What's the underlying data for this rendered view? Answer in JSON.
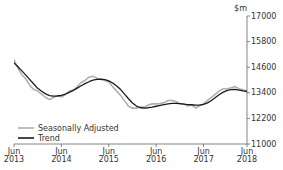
{
  "chart_data": {
    "type": "line",
    "ylabel": "$m",
    "categories": [
      "Jun\n2013",
      null,
      null,
      null,
      null,
      null,
      null,
      null,
      null,
      null,
      null,
      null,
      "Jun\n2014",
      null,
      null,
      null,
      null,
      null,
      null,
      null,
      null,
      null,
      null,
      null,
      "Jun\n2015",
      null,
      null,
      null,
      null,
      null,
      null,
      null,
      null,
      null,
      null,
      null,
      "Jun\n2016",
      null,
      null,
      null,
      null,
      null,
      null,
      null,
      null,
      null,
      null,
      null,
      "Jun\n2017",
      null,
      null,
      null,
      null,
      null,
      null,
      null,
      null,
      null,
      null,
      "Jun\n2018"
    ],
    "series": [
      {
        "name": "Seasonally Adjusted",
        "color": "#b0b0b0",
        "values": [
          14950,
          14550,
          14250,
          14050,
          13750,
          13550,
          13480,
          13340,
          13180,
          13080,
          13180,
          13280,
          13200,
          13320,
          13480,
          13530,
          13680,
          13880,
          13980,
          14130,
          14180,
          14080,
          14020,
          13980,
          13920,
          13680,
          13480,
          13280,
          13020,
          12770,
          12680,
          12680,
          12730,
          12730,
          12830,
          12880,
          12880,
          12900,
          12940,
          13040,
          13040,
          12990,
          12880,
          12880,
          12780,
          12830,
          12690,
          12790,
          12890,
          13040,
          13190,
          13340,
          13490,
          13590,
          13590,
          13640,
          13690,
          13590,
          13540,
          13490
        ]
      },
      {
        "name": "Trend",
        "color": "#1a1a1a",
        "values": [
          14800,
          14620,
          14430,
          14230,
          14020,
          13810,
          13610,
          13470,
          13350,
          13270,
          13240,
          13250,
          13280,
          13340,
          13420,
          13510,
          13620,
          13730,
          13830,
          13920,
          13990,
          14030,
          14040,
          14020,
          13960,
          13860,
          13720,
          13550,
          13340,
          13120,
          12920,
          12780,
          12700,
          12680,
          12700,
          12730,
          12770,
          12810,
          12850,
          12880,
          12900,
          12900,
          12890,
          12870,
          12850,
          12840,
          12820,
          12820,
          12860,
          12930,
          13040,
          13180,
          13320,
          13430,
          13510,
          13550,
          13560,
          13530,
          13490,
          13460
        ]
      }
    ],
    "ylim": [
      11000,
      17000
    ],
    "yticks": [
      11000,
      12200,
      13400,
      14600,
      15800,
      17000
    ],
    "grid": false,
    "legend": "lower left"
  }
}
